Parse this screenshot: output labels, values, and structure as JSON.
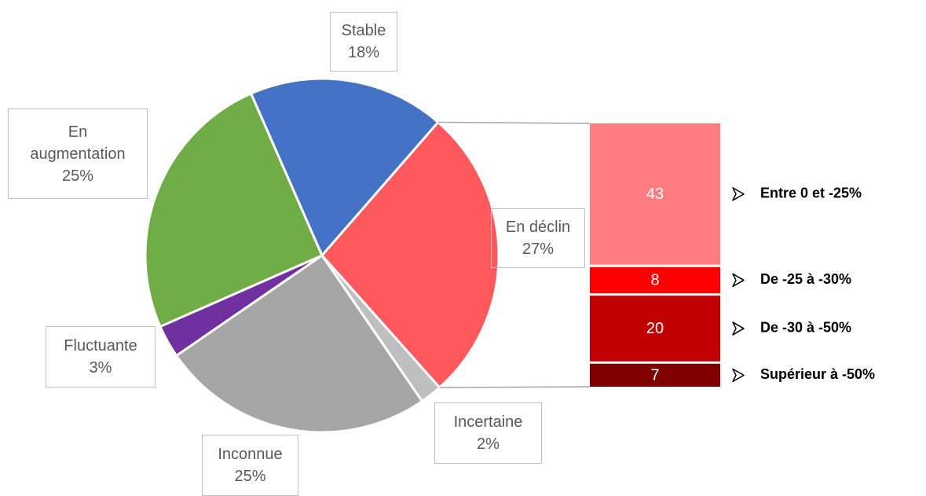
{
  "chart_data": {
    "type": "pie",
    "categories": [
      "Stable",
      "En déclin",
      "Incertaine",
      "Inconnue",
      "Fluctuante",
      "En augmentation"
    ],
    "values": [
      18,
      27,
      2,
      25,
      3,
      25
    ],
    "value_labels": [
      "18%",
      "27%",
      "2%",
      "25%",
      "3%",
      "25%"
    ],
    "colors": [
      "#4472c4",
      "#ff595e",
      "#bfbfbf",
      "#a6a6a6",
      "#7030a0",
      "#70ad47"
    ],
    "breakdown": {
      "categories": [
        "Entre 0 et -25%",
        "De -25 à -30%",
        "De -30 à -50%",
        "Supérieur à -50%"
      ],
      "values": [
        43,
        8,
        20,
        7
      ],
      "colors": [
        "#ff7c80",
        "#ff0000",
        "#c00000",
        "#800000"
      ]
    }
  }
}
